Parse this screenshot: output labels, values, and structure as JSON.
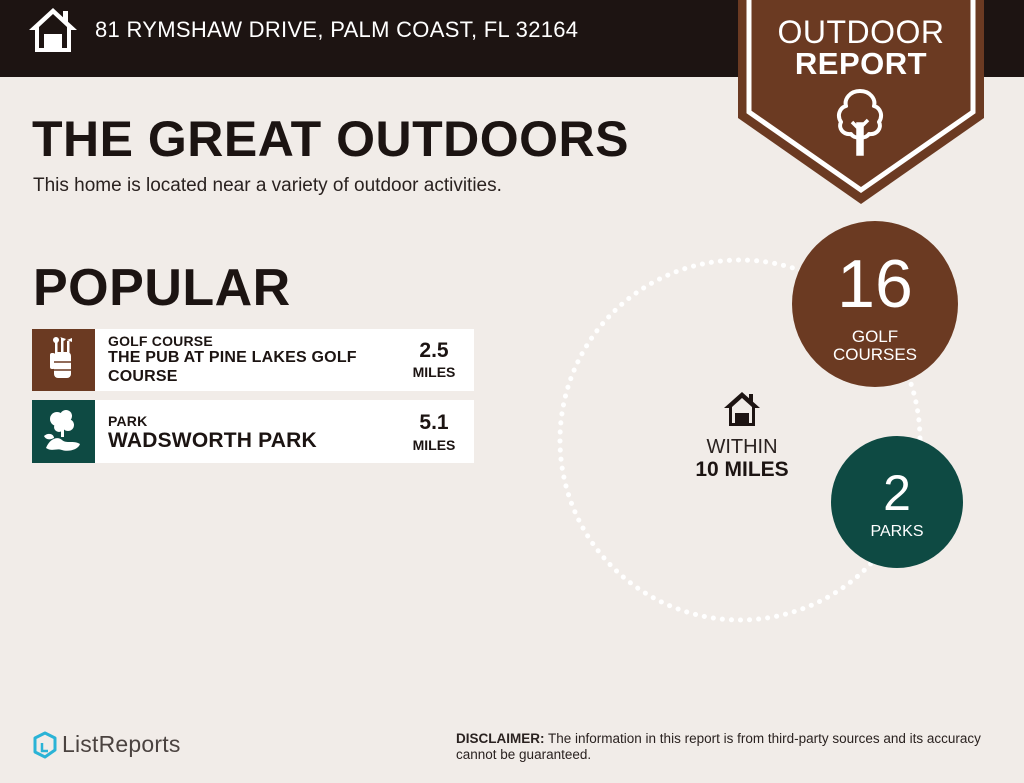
{
  "header": {
    "address": "81 RYMSHAW DRIVE, PALM COAST, FL 32164",
    "home_icon": "home-icon",
    "background": "#1d1412"
  },
  "badge": {
    "line1": "OUTDOOR",
    "line2": "REPORT",
    "icon": "tree-icon",
    "color": "#6b3a22"
  },
  "intro": {
    "title": "THE GREAT OUTDOORS",
    "subtitle": "This home is located near a variety of outdoor activities."
  },
  "popular": {
    "heading": "POPULAR",
    "items": [
      {
        "category": "GOLF COURSE",
        "name_line1": "THE PUB AT PINE LAKES GOLF",
        "name_line2": "COURSE",
        "distance": "2.5",
        "unit": "MILES",
        "icon": "golf-bag-icon",
        "color": "#6b3a22"
      },
      {
        "category": "PARK",
        "name_line1": "WADSWORTH PARK",
        "distance": "5.1",
        "unit": "MILES",
        "icon": "park-icon",
        "color": "#0e4a43"
      }
    ]
  },
  "radius": {
    "line1": "WITHIN",
    "line2": "10 MILES",
    "icon": "home-icon"
  },
  "stats": [
    {
      "count": "16",
      "label_line1": "GOLF",
      "label_line2": "COURSES",
      "color": "#6b3a22"
    },
    {
      "count": "2",
      "label_line1": "PARKS",
      "color": "#0e4a43"
    }
  ],
  "footer": {
    "logo_text": "ListReports",
    "logo_icon": "listreports-logo-icon",
    "disclaimer_label": "DISCLAIMER:",
    "disclaimer_text": " The information in this report is from third-party sources and its accuracy cannot be guaranteed."
  }
}
